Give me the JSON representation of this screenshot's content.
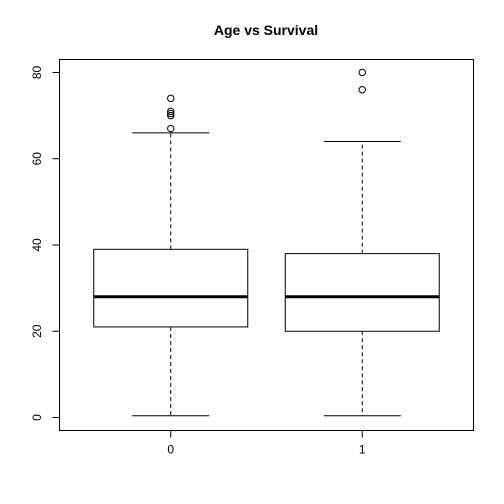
{
  "chart_data": {
    "type": "boxplot",
    "title": "Age vs Survival",
    "xlabel": "",
    "ylabel": "",
    "categories": [
      "0",
      "1"
    ],
    "ylim": [
      -3,
      83
    ],
    "yticks": [
      0,
      20,
      40,
      60,
      80
    ],
    "boxes": [
      {
        "category": "0",
        "whisker_low": 0.4,
        "q1": 21,
        "median": 28,
        "q3": 39,
        "whisker_high": 66,
        "outliers": [
          67,
          70,
          70.5,
          71,
          74
        ]
      },
      {
        "category": "1",
        "whisker_low": 0.4,
        "q1": 20,
        "median": 28,
        "q3": 38,
        "whisker_high": 64,
        "outliers": [
          76,
          80
        ]
      }
    ],
    "grid": false,
    "legend": "none"
  }
}
